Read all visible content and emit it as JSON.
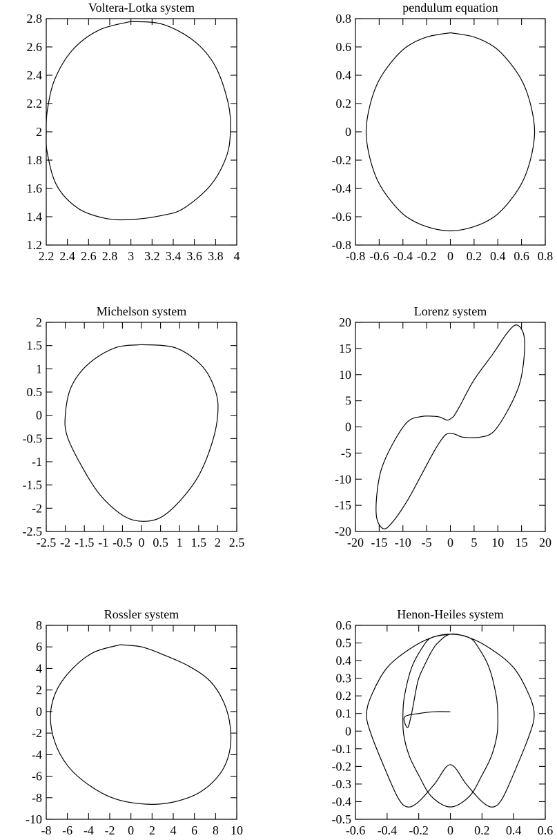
{
  "chart_data": [
    {
      "type": "line",
      "title": "Voltera-Lotka system",
      "xlim": [
        2.2,
        4
      ],
      "ylim": [
        1.2,
        2.8
      ],
      "xticks": [
        2.2,
        2.4,
        2.6,
        2.8,
        3,
        3.2,
        3.4,
        3.6,
        3.8,
        4
      ],
      "xtick_labels": [
        "2.2",
        "2.4",
        "2.6",
        "2.8",
        "3",
        "3.2",
        "3.4",
        "3.6",
        "3.8",
        "4"
      ],
      "yticks": [
        1.2,
        1.4,
        1.6,
        1.8,
        2,
        2.2,
        2.4,
        2.6,
        2.8
      ],
      "ytick_labels": [
        "1.2",
        "1.4",
        "1.6",
        "1.8",
        "2",
        "2.2",
        "2.4",
        "2.6",
        "2.8"
      ],
      "series": [
        {
          "x": [
            3,
            3.3,
            3.6,
            3.8,
            3.92,
            3.94,
            3.9,
            3.75,
            3.5,
            3.3,
            3,
            2.75,
            2.5,
            2.3,
            2.21,
            2.2,
            2.21,
            2.28,
            2.45,
            2.7,
            3
          ],
          "y": [
            2.78,
            2.76,
            2.64,
            2.46,
            2.2,
            2,
            1.82,
            1.62,
            1.46,
            1.41,
            1.38,
            1.39,
            1.46,
            1.62,
            1.85,
            2,
            2.15,
            2.37,
            2.58,
            2.72,
            2.78
          ]
        }
      ]
    },
    {
      "type": "line",
      "title": "pendulum equation",
      "xlim": [
        -0.8,
        0.8
      ],
      "ylim": [
        -0.8,
        0.8
      ],
      "xticks": [
        -0.8,
        -0.6,
        -0.4,
        -0.2,
        0,
        0.2,
        0.4,
        0.6,
        0.8
      ],
      "xtick_labels": [
        "-0.8",
        "-0.6",
        "-0.4",
        "-0.2",
        "0",
        "0.2",
        "0.4",
        "0.6",
        "0.8"
      ],
      "yticks": [
        -0.8,
        -0.6,
        -0.4,
        -0.2,
        0,
        0.2,
        0.4,
        0.6,
        0.8
      ],
      "ytick_labels": [
        "-0.8",
        "-0.6",
        "-0.4",
        "-0.2",
        "0",
        "0.2",
        "0.4",
        "0.6",
        "0.8"
      ],
      "series": [
        {
          "x": [
            0,
            0.2,
            0.37,
            0.5,
            0.61,
            0.68,
            0.71,
            0.68,
            0.61,
            0.5,
            0.37,
            0.2,
            0,
            -0.2,
            -0.37,
            -0.5,
            -0.61,
            -0.68,
            -0.71,
            -0.68,
            -0.61,
            -0.5,
            -0.37,
            -0.2,
            0
          ],
          "y": [
            0.7,
            0.67,
            0.6,
            0.49,
            0.35,
            0.18,
            0,
            -0.18,
            -0.35,
            -0.49,
            -0.6,
            -0.67,
            -0.7,
            -0.67,
            -0.6,
            -0.49,
            -0.35,
            -0.18,
            0,
            0.18,
            0.35,
            0.49,
            0.6,
            0.67,
            0.7
          ]
        }
      ]
    },
    {
      "type": "line",
      "title": "Michelson system",
      "xlim": [
        -2.5,
        2.5
      ],
      "ylim": [
        -2.5,
        2
      ],
      "xticks": [
        -2.5,
        -2,
        -1.5,
        -1,
        -0.5,
        0,
        0.5,
        1,
        1.5,
        2,
        2.5
      ],
      "xtick_labels": [
        "-2.5",
        "-2",
        "-1.5",
        "-1",
        "-0.5",
        "0",
        "0.5",
        "1",
        "1.5",
        "2",
        "2.5"
      ],
      "yticks": [
        -2.5,
        -2,
        -1.5,
        -1,
        -0.5,
        0,
        0.5,
        1,
        1.5,
        2
      ],
      "ytick_labels": [
        "-2.5",
        "-2",
        "-1.5",
        "-1",
        "-0.5",
        "0",
        "0.5",
        "1",
        "1.5",
        "2"
      ],
      "series": [
        {
          "x": [
            0,
            0.9,
            1.6,
            1.95,
            2,
            1.85,
            1.5,
            1,
            0.5,
            0,
            -0.5,
            -1.1,
            -1.6,
            -1.95,
            -2,
            -1.85,
            -1.4,
            -0.7,
            0
          ],
          "y": [
            1.52,
            1.45,
            1.05,
            0.5,
            0,
            -0.6,
            -1.3,
            -1.85,
            -2.2,
            -2.28,
            -2.15,
            -1.7,
            -1.05,
            -0.45,
            0,
            0.6,
            1.1,
            1.45,
            1.52
          ]
        }
      ]
    },
    {
      "type": "line",
      "title": "Lorenz system",
      "xlim": [
        -20,
        20
      ],
      "ylim": [
        -20,
        20
      ],
      "xticks": [
        -20,
        -15,
        -10,
        -5,
        0,
        5,
        10,
        15,
        20
      ],
      "xtick_labels": [
        "-20",
        "-15",
        "-10",
        "-5",
        "0",
        "5",
        "10",
        "15",
        "20"
      ],
      "yticks": [
        -20,
        -15,
        -10,
        -5,
        0,
        5,
        10,
        15,
        20
      ],
      "ytick_labels": [
        "-20",
        "-15",
        "-10",
        "-5",
        "0",
        "5",
        "10",
        "15",
        "20"
      ],
      "series": [
        {
          "x": [
            0.7,
            2,
            5,
            9,
            12,
            14,
            15.5,
            15.5,
            14.5,
            12,
            9,
            6,
            3,
            2,
            1.5,
            0.5,
            -1,
            -3,
            -6,
            -9,
            -12,
            -14,
            -15.5,
            -15.5,
            -14.5,
            -12,
            -9,
            -6,
            -3,
            -2,
            -1.5,
            -0.5,
            0.7
          ],
          "y": [
            2,
            4,
            9,
            14,
            18,
            19.5,
            17.5,
            13,
            8,
            3,
            -1,
            -2,
            -2,
            -1.8,
            -1.6,
            -1.3,
            -1.5,
            -4,
            -9,
            -14,
            -18,
            -19.5,
            -17.5,
            -13,
            -8,
            -3,
            1,
            2,
            2,
            1.8,
            1.6,
            1.3,
            2
          ]
        }
      ]
    },
    {
      "type": "line",
      "title": "Rossler system",
      "xlim": [
        -8,
        10
      ],
      "ylim": [
        -10,
        8
      ],
      "xticks": [
        -8,
        -6,
        -4,
        -2,
        0,
        2,
        4,
        6,
        8,
        10
      ],
      "xtick_labels": [
        "-8",
        "-6",
        "-4",
        "-2",
        "0",
        "2",
        "4",
        "6",
        "8",
        "10"
      ],
      "yticks": [
        -10,
        -8,
        -6,
        -4,
        -2,
        0,
        2,
        4,
        6,
        8
      ],
      "ytick_labels": [
        "-10",
        "-8",
        "-6",
        "-4",
        "-2",
        "0",
        "2",
        "4",
        "6",
        "8"
      ],
      "series": [
        {
          "x": [
            -1,
            1,
            3,
            5.5,
            7.5,
            8.8,
            9.4,
            9.3,
            8.4,
            6.5,
            4,
            1.5,
            -1.5,
            -4,
            -6,
            -7.2,
            -7.6,
            -7,
            -5.5,
            -3.5,
            -1
          ],
          "y": [
            6.2,
            6,
            5.3,
            4.2,
            2.8,
            0.8,
            -1.5,
            -3.8,
            -5.8,
            -7.5,
            -8.4,
            -8.6,
            -8.1,
            -6.8,
            -5,
            -2.8,
            -0.3,
            2,
            4,
            5.5,
            6.2
          ]
        }
      ]
    },
    {
      "type": "line",
      "title": "Henon-Heiles system",
      "xlim": [
        -0.6,
        0.6
      ],
      "ylim": [
        -0.5,
        0.6
      ],
      "xticks": [
        -0.6,
        -0.4,
        -0.2,
        0,
        0.2,
        0.4,
        0.6
      ],
      "xtick_labels": [
        "-0.6",
        "-0.4",
        "-0.2",
        "0",
        "0.2",
        "0.4",
        "0.6"
      ],
      "yticks": [
        -0.5,
        -0.4,
        -0.3,
        -0.2,
        -0.1,
        0,
        0.1,
        0.2,
        0.3,
        0.4,
        0.5,
        0.6
      ],
      "ytick_labels": [
        "-0.5",
        "-0.4",
        "-0.3",
        "-0.2",
        "-0.1",
        "0",
        "0.1",
        "0.2",
        "0.3",
        "0.4",
        "0.5",
        "0.6"
      ],
      "series": [
        {
          "x": [
            0,
            -0.12,
            -0.18,
            -0.245,
            -0.29,
            -0.3,
            -0.295,
            -0.26,
            -0.2,
            -0.12,
            0,
            0.12,
            0.2,
            0.26,
            0.295,
            0.3,
            0.29,
            0.245,
            0.18,
            0.12,
            0,
            -0.12,
            -0.25,
            -0.4,
            -0.5,
            -0.53,
            -0.5,
            -0.42,
            -0.33,
            -0.27,
            -0.2,
            -0.1,
            0,
            0.1,
            0.2,
            0.27,
            0.33,
            0.42,
            0.5,
            0.53,
            0.5,
            0.4,
            0.25,
            0.12,
            0,
            -0.08,
            -0.12,
            -0.16,
            -0.2,
            -0.22,
            -0.245,
            -0.27,
            -0.29,
            -0.2,
            -0.1,
            0
          ],
          "y": [
            0.55,
            0.53,
            0.47,
            0.36,
            0.2,
            0.09,
            -0.02,
            -0.14,
            -0.25,
            -0.37,
            -0.43,
            -0.37,
            -0.25,
            -0.14,
            -0.02,
            0.09,
            0.2,
            0.36,
            0.47,
            0.53,
            0.55,
            0.53,
            0.47,
            0.36,
            0.2,
            0.09,
            -0.02,
            -0.2,
            -0.38,
            -0.43,
            -0.4,
            -0.3,
            -0.19,
            -0.3,
            -0.4,
            -0.43,
            -0.38,
            -0.2,
            -0.02,
            0.09,
            0.2,
            0.36,
            0.47,
            0.53,
            0.55,
            0.5,
            0.45,
            0.38,
            0.3,
            0.22,
            0.1,
            0.02,
            0.08,
            0.1,
            0.11,
            0.11
          ]
        }
      ]
    }
  ]
}
